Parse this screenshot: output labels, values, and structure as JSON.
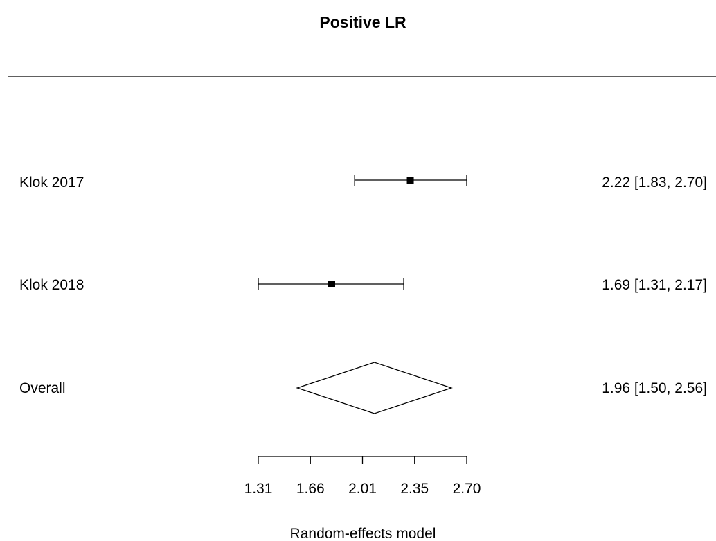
{
  "chart_data": {
    "type": "forest",
    "title": "Positive LR",
    "xlabel": "Random-effects model",
    "x_scale": "log",
    "xlim": [
      1.31,
      2.7
    ],
    "xticks": [
      "1.31",
      "1.66",
      "2.01",
      "2.35",
      "2.70"
    ],
    "studies": [
      {
        "label": "Klok 2017",
        "estimate": 2.22,
        "ci_low": 1.83,
        "ci_high": 2.7,
        "text": "2.22 [1.83, 2.70]"
      },
      {
        "label": "Klok 2018",
        "estimate": 1.69,
        "ci_low": 1.31,
        "ci_high": 2.17,
        "text": "1.69 [1.31, 2.17]"
      }
    ],
    "overall": {
      "label": "Overall",
      "estimate": 1.96,
      "ci_low": 1.5,
      "ci_high": 2.56,
      "text": "1.96 [1.50, 2.56]"
    }
  }
}
